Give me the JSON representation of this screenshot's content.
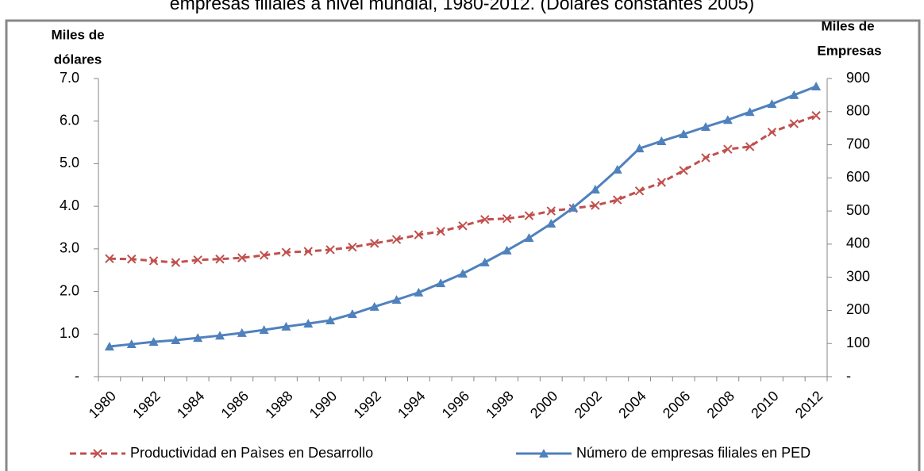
{
  "chart_data": {
    "type": "line",
    "title": "empresas filiales a nivel mundial, 1980-2012. (Dólares constantes 2005)",
    "y_label": [
      "Miles de",
      "dólares"
    ],
    "y2_label": [
      "Miles  de",
      "Empresas"
    ],
    "categories": [
      "1980",
      null,
      "1982",
      null,
      "1984",
      null,
      "1986",
      null,
      "1988",
      null,
      "1990",
      null,
      "1992",
      null,
      "1994",
      null,
      "1996",
      null,
      "1998",
      null,
      "2000",
      null,
      "2002",
      null,
      "2004",
      null,
      "2006",
      null,
      "2008",
      null,
      "2010",
      null,
      "2012"
    ],
    "series": [
      {
        "name": "Productividad en Paìses en Desarrollo",
        "color": "#c0504d",
        "marker": "x",
        "dash": true,
        "values": [
          2.77,
          2.76,
          2.72,
          2.68,
          2.74,
          2.76,
          2.79,
          2.85,
          2.92,
          2.94,
          2.98,
          3.04,
          3.13,
          3.22,
          3.33,
          3.41,
          3.54,
          3.69,
          3.71,
          3.78,
          3.89,
          3.95,
          4.02,
          4.15,
          4.36,
          4.56,
          4.84,
          5.14,
          5.34,
          5.4,
          5.74,
          5.94,
          6.13
        ]
      },
      {
        "name": "Númer​o de empresas filiales en PED",
        "color": "#4f81bd",
        "marker": "triangle",
        "dash": false,
        "axis": "y2",
        "values": [
          91,
          98,
          105,
          110,
          117,
          124,
          132,
          141,
          151,
          160,
          170,
          189,
          211,
          232,
          254,
          282,
          311,
          345,
          381,
          419,
          462,
          510,
          565,
          625,
          689,
          711,
          732,
          754,
          775,
          799,
          823,
          850,
          876
        ]
      }
    ],
    "ylim": [
      0,
      7
    ],
    "yticks": [
      {
        "value": 0,
        "label": "-"
      },
      {
        "value": 1,
        "label": "1.0"
      },
      {
        "value": 2,
        "label": "2.0"
      },
      {
        "value": 3,
        "label": "3.0"
      },
      {
        "value": 4,
        "label": "4.0"
      },
      {
        "value": 5,
        "label": "5.0"
      },
      {
        "value": 6,
        "label": "6.0"
      },
      {
        "value": 7,
        "label": "7.0"
      }
    ],
    "y2lim": [
      0,
      900
    ],
    "y2ticks": [
      {
        "value": 0,
        "label": "-"
      },
      100,
      200,
      300,
      400,
      500,
      600,
      700,
      800,
      900
    ],
    "legend": "bottom"
  }
}
